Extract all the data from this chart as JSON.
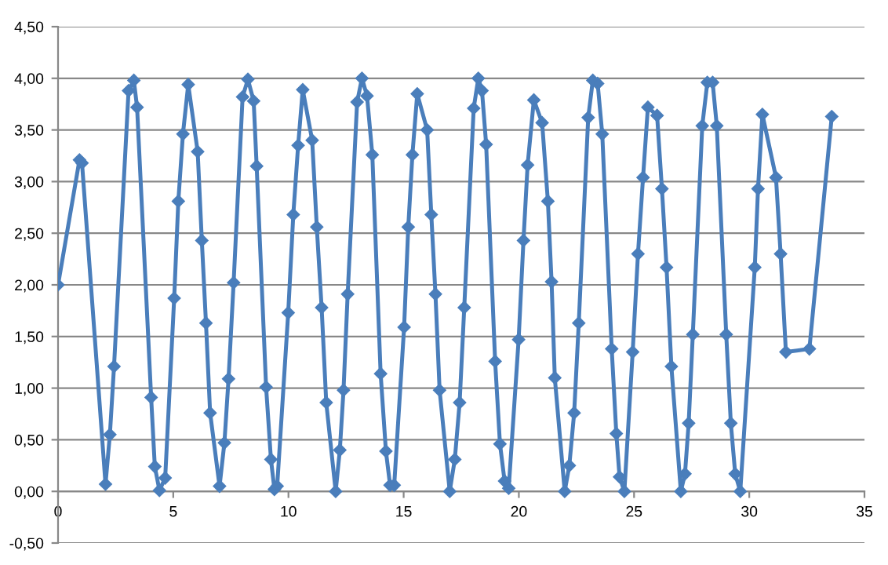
{
  "chart_data": {
    "type": "line",
    "marker": "diamond",
    "line_style": "solid",
    "grid": "y",
    "xlim": [
      0,
      35
    ],
    "xticks": [
      0,
      5,
      10,
      15,
      20,
      25,
      30,
      35
    ],
    "ylim": [
      -0.5,
      4.5
    ],
    "yticks": [
      {
        "value": -0.5,
        "label": "-0,50"
      },
      {
        "value": 0,
        "label": "0,00"
      },
      {
        "value": 0.5,
        "label": "0,50"
      },
      {
        "value": 1,
        "label": "1,00"
      },
      {
        "value": 1.5,
        "label": "1,50"
      },
      {
        "value": 2,
        "label": "2,00"
      },
      {
        "value": 2.5,
        "label": "2,50"
      },
      {
        "value": 3,
        "label": "3,00"
      },
      {
        "value": 3.5,
        "label": "3,50"
      },
      {
        "value": 4,
        "label": "4,00"
      },
      {
        "value": 4.5,
        "label": "4,50"
      }
    ],
    "series": [
      {
        "color": "#4a7ebb",
        "x": [
          0,
          0.93,
          1.04,
          2.06,
          2.25,
          2.43,
          3.06,
          3.29,
          3.43,
          4.04,
          4.2,
          4.4,
          4.65,
          5.04,
          5.22,
          5.42,
          5.65,
          6.06,
          6.24,
          6.42,
          6.6,
          7.01,
          7.22,
          7.4,
          7.62,
          8.01,
          8.24,
          8.49,
          8.62,
          9.03,
          9.24,
          9.39,
          9.51,
          9.99,
          10.21,
          10.42,
          10.62,
          11.03,
          11.23,
          11.44,
          11.64,
          12.05,
          12.23,
          12.39,
          12.57,
          12.98,
          13.19,
          13.41,
          13.64,
          14.0,
          14.23,
          14.41,
          14.59,
          15.02,
          15.2,
          15.38,
          15.59,
          16.02,
          16.2,
          16.38,
          16.56,
          17.0,
          17.22,
          17.43,
          17.63,
          18.04,
          18.24,
          18.4,
          18.58,
          18.97,
          19.18,
          19.38,
          19.56,
          19.99,
          20.2,
          20.38,
          20.65,
          21.01,
          21.26,
          21.42,
          21.56,
          21.99,
          22.19,
          22.4,
          22.6,
          23.01,
          23.21,
          23.42,
          23.62,
          24.03,
          24.23,
          24.37,
          24.58,
          24.94,
          25.17,
          25.39,
          25.6,
          26.0,
          26.21,
          26.41,
          26.62,
          27.03,
          27.21,
          27.37,
          27.55,
          27.96,
          28.18,
          28.41,
          28.59,
          29.0,
          29.2,
          29.39,
          29.61,
          30.24,
          30.38,
          30.57,
          31.16,
          31.36,
          31.59,
          32.61,
          33.58
        ],
        "values": [
          2.0,
          3.21,
          3.18,
          0.07,
          0.55,
          1.21,
          3.88,
          3.98,
          3.72,
          0.91,
          0.24,
          0.01,
          0.13,
          1.87,
          2.81,
          3.46,
          3.94,
          3.29,
          2.43,
          1.63,
          0.76,
          0.05,
          0.47,
          1.09,
          2.02,
          3.82,
          3.99,
          3.78,
          3.15,
          1.01,
          0.31,
          0.02,
          0.05,
          1.73,
          2.68,
          3.35,
          3.89,
          3.4,
          2.56,
          1.78,
          0.86,
          0.0,
          0.4,
          0.98,
          1.91,
          3.77,
          4.0,
          3.83,
          3.26,
          1.14,
          0.39,
          0.06,
          0.06,
          1.59,
          2.56,
          3.26,
          3.85,
          3.5,
          2.68,
          1.91,
          0.98,
          0.0,
          0.31,
          0.86,
          1.78,
          3.71,
          4.0,
          3.88,
          3.36,
          1.26,
          0.46,
          0.1,
          0.03,
          1.47,
          2.43,
          3.16,
          3.79,
          3.57,
          2.81,
          2.03,
          1.1,
          0.0,
          0.25,
          0.76,
          1.63,
          3.62,
          3.98,
          3.95,
          3.46,
          1.38,
          0.56,
          0.14,
          0.0,
          1.35,
          2.3,
          3.04,
          3.72,
          3.64,
          2.93,
          2.17,
          1.21,
          0.0,
          0.17,
          0.66,
          1.52,
          3.54,
          3.96,
          3.96,
          3.54,
          1.52,
          0.66,
          0.17,
          0.0,
          2.17,
          2.93,
          3.65,
          3.04,
          2.3,
          1.35,
          1.38,
          3.63
        ]
      }
    ]
  }
}
